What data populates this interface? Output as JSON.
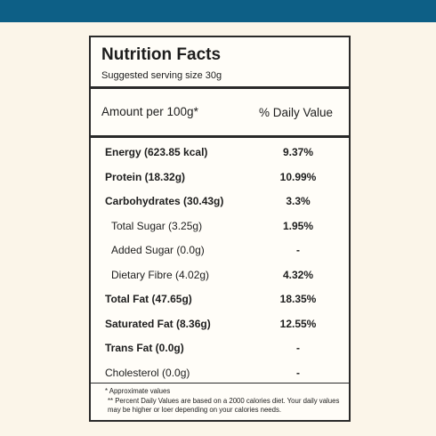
{
  "label": {
    "title": "Nutrition Facts",
    "serving": "Suggested serving size 30g",
    "amount_header": "Amount per 100g*",
    "dv_header": "% Daily Value",
    "rows": [
      {
        "name": "Energy (623.85 kcal)",
        "dv": "9.37%",
        "bold": true
      },
      {
        "name": "Protein (18.32g)",
        "dv": "10.99%",
        "bold": true
      },
      {
        "name": "Carbohydrates (30.43g)",
        "dv": "3.3%",
        "bold": true
      },
      {
        "name": "Total Sugar (3.25g)",
        "dv": "1.95%",
        "bold": false
      },
      {
        "name": "Added Sugar (0.0g)",
        "dv": "-",
        "bold": false
      },
      {
        "name": "Dietary Fibre (4.02g)",
        "dv": "4.32%",
        "bold": false
      },
      {
        "name": "Total Fat (47.65g)",
        "dv": "18.35%",
        "bold": true
      },
      {
        "name": "Saturated Fat (8.36g)",
        "dv": "12.55%",
        "bold": true
      },
      {
        "name": "Trans Fat (0.0g)",
        "dv": "-",
        "bold": true
      },
      {
        "name": "Cholesterol (0.0g)",
        "dv": "-",
        "bold": false
      }
    ],
    "footnote_1": "* Approximate values",
    "footnote_2": "** Percent Daily Values are based on a 2000 calories diet. Your daily values may be higher or loer depending on your calories needs."
  }
}
